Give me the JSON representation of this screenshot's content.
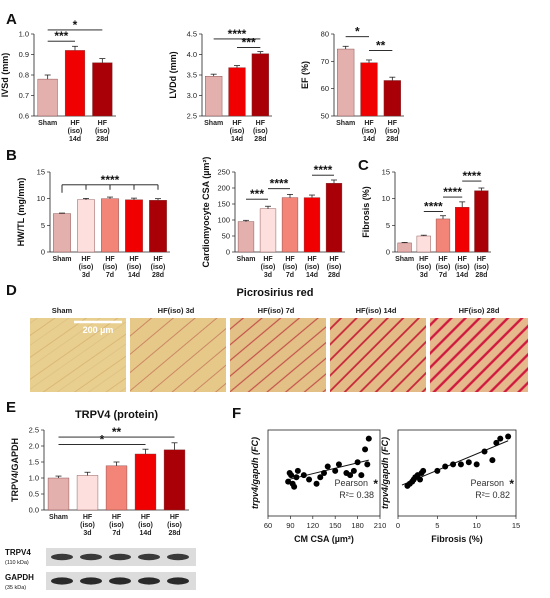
{
  "panel_letters": [
    "A",
    "B",
    "C",
    "D",
    "E",
    "F"
  ],
  "histology": {
    "title": "Picrosirius red",
    "scale_bar_label": "200 µm",
    "labels": [
      "Sham",
      "HF(iso) 3d",
      "HF(iso) 7d",
      "HF(iso) 14d",
      "HF(iso) 28d"
    ]
  },
  "western": {
    "bands": [
      {
        "name": "TRPV4",
        "size": "(110 kDa)"
      },
      {
        "name": "GAPDH",
        "size": "(35 kDa)"
      }
    ]
  },
  "colors": {
    "sham": "#e3b0ad",
    "d3": "#fde0de",
    "d7": "#f28478",
    "d14": "#f00000",
    "d28": "#a80006",
    "dot": "#000000"
  },
  "chart_data": [
    {
      "id": "A1",
      "type": "bar",
      "ylabel": "IVSd (mm)",
      "categories": [
        "Sham",
        "HF (iso) 14d",
        "HF (iso) 28d"
      ],
      "colors": [
        "sham",
        "d14",
        "d28"
      ],
      "values": [
        0.78,
        0.92,
        0.86
      ],
      "errors": [
        0.02,
        0.02,
        0.02
      ],
      "ylim": [
        0.6,
        1.0
      ],
      "yticks": [
        "0.6",
        "0.7",
        "0.8",
        "0.9",
        "1.0"
      ],
      "sig": [
        {
          "from": 0,
          "to": 1,
          "label": "***",
          "y": 0.965
        },
        {
          "from": 0,
          "to": 2,
          "label": "*",
          "y": 1.02
        }
      ]
    },
    {
      "id": "A2",
      "type": "bar",
      "ylabel": "LVDd (mm)",
      "categories": [
        "Sham",
        "HF (iso) 14d",
        "HF (iso) 28d"
      ],
      "colors": [
        "sham",
        "d14",
        "d28"
      ],
      "values": [
        3.47,
        3.68,
        4.02
      ],
      "errors": [
        0.05,
        0.05,
        0.05
      ],
      "ylim": [
        2.5,
        4.5
      ],
      "yticks": [
        "2.5",
        "3.0",
        "3.5",
        "4.0",
        "4.5"
      ],
      "sig": [
        {
          "from": 1,
          "to": 2,
          "label": "***",
          "y": 4.17
        },
        {
          "from": 0,
          "to": 2,
          "label": "****",
          "y": 4.38
        }
      ]
    },
    {
      "id": "A3",
      "type": "bar",
      "ylabel": "EF (%)",
      "categories": [
        "Sham",
        "HF (iso) 14d",
        "HF (iso) 28d"
      ],
      "colors": [
        "sham",
        "d14",
        "d28"
      ],
      "values": [
        74.5,
        69.5,
        63
      ],
      "errors": [
        1,
        1,
        1.2
      ],
      "ylim": [
        50,
        80
      ],
      "yticks": [
        "50",
        "60",
        "70",
        "80"
      ],
      "sig": [
        {
          "from": 1,
          "to": 2,
          "label": "**",
          "y": 74
        },
        {
          "from": 0,
          "to": 1,
          "label": "*",
          "y": 79
        }
      ]
    },
    {
      "id": "B1",
      "type": "bar",
      "ylabel": "HW/TL (mg/mm)",
      "categories": [
        "Sham",
        "HF (iso) 3d",
        "HF (iso) 7d",
        "HF (iso) 14d",
        "HF (iso) 28d"
      ],
      "colors": [
        "sham",
        "d3",
        "d7",
        "d14",
        "d28"
      ],
      "values": [
        7.2,
        9.8,
        10.0,
        9.8,
        9.7
      ],
      "errors": [
        0.1,
        0.25,
        0.3,
        0.3,
        0.3
      ],
      "ylim": [
        0,
        15
      ],
      "yticks": [
        "0",
        "5",
        "10",
        "15"
      ],
      "sig": [
        {
          "from": 0,
          "to": 4,
          "label": "****",
          "y": 12.6,
          "bracket": true
        }
      ]
    },
    {
      "id": "B2",
      "type": "bar",
      "ylabel": "Cardiomyocyte CSA (µm²)",
      "categories": [
        "Sham",
        "HF (iso) 3d",
        "HF (iso) 7d",
        "HF (iso) 14d",
        "HF (iso) 28d"
      ],
      "colors": [
        "sham",
        "d3",
        "d7",
        "d14",
        "d28"
      ],
      "values": [
        95,
        135,
        170,
        170,
        215
      ],
      "errors": [
        4,
        8,
        10,
        8,
        10
      ],
      "ylim": [
        0,
        250
      ],
      "yticks": [
        "0",
        "50",
        "100",
        "150",
        "200",
        "250"
      ],
      "sig": [
        {
          "from": 0,
          "to": 1,
          "label": "***",
          "y": 165
        },
        {
          "from": 1,
          "to": 2,
          "label": "****",
          "y": 198
        },
        {
          "from": 3,
          "to": 4,
          "label": "****",
          "y": 240
        }
      ]
    },
    {
      "id": "C",
      "type": "bar",
      "ylabel": "Fibrosis (%)",
      "categories": [
        "Sham",
        "HF (iso) 3d",
        "HF (iso) 7d",
        "HF (iso) 14d",
        "HF (iso) 28d"
      ],
      "colors": [
        "sham",
        "d3",
        "d7",
        "d14",
        "d28"
      ],
      "values": [
        1.7,
        3.0,
        6.2,
        8.4,
        11.5
      ],
      "errors": [
        0.1,
        0.15,
        0.6,
        1.0,
        0.5
      ],
      "ylim": [
        0,
        15
      ],
      "yticks": [
        "0",
        "5",
        "10",
        "15"
      ],
      "sig": [
        {
          "from": 1,
          "to": 2,
          "label": "****",
          "y": 7.6
        },
        {
          "from": 2,
          "to": 3,
          "label": "****",
          "y": 10.3
        },
        {
          "from": 3,
          "to": 4,
          "label": "****",
          "y": 13.3
        }
      ]
    },
    {
      "id": "E",
      "type": "bar",
      "title": "TRPV4 (protein)",
      "ylabel": "TRPV4/GAPDH",
      "categories": [
        "Sham",
        "HF (iso) 3d",
        "HF (iso) 7d",
        "HF (iso) 14d",
        "HF (iso) 28d"
      ],
      "colors": [
        "sham",
        "d3",
        "d7",
        "d14",
        "d28"
      ],
      "values": [
        1.0,
        1.08,
        1.38,
        1.75,
        1.88
      ],
      "errors": [
        0.06,
        0.1,
        0.12,
        0.15,
        0.22
      ],
      "ylim": [
        0,
        2.5
      ],
      "yticks": [
        "0.0",
        "0.5",
        "1.0",
        "1.5",
        "2.0",
        "2.5"
      ],
      "sig": [
        {
          "from": 0,
          "to": 3,
          "label": "*",
          "y": 2.05
        },
        {
          "from": 0,
          "to": 4,
          "label": "**",
          "y": 2.28
        }
      ]
    },
    {
      "id": "F1",
      "type": "scatter",
      "xlabel": "CM CSA (µm²)",
      "ylabel": "trpv4/gapdh (FC)",
      "xlim": [
        60,
        210
      ],
      "ylim": [
        0,
        2
      ],
      "xticks": [
        "60",
        "90",
        "120",
        "150",
        "180",
        "210"
      ],
      "stat_label": "Pearson",
      "stat_sig": "*",
      "r2": "R²= 0.38",
      "line": [
        [
          88,
          0.85
        ],
        [
          195,
          1.3
        ]
      ],
      "points": [
        [
          87,
          0.8
        ],
        [
          89,
          1.0
        ],
        [
          91,
          0.95
        ],
        [
          93,
          0.75
        ],
        [
          95,
          0.68
        ],
        [
          98,
          0.9
        ],
        [
          100,
          1.05
        ],
        [
          108,
          0.95
        ],
        [
          115,
          0.85
        ],
        [
          125,
          0.75
        ],
        [
          130,
          0.9
        ],
        [
          135,
          1.0
        ],
        [
          140,
          1.15
        ],
        [
          150,
          1.05
        ],
        [
          155,
          1.2
        ],
        [
          165,
          1.0
        ],
        [
          170,
          0.95
        ],
        [
          175,
          1.05
        ],
        [
          180,
          1.25
        ],
        [
          185,
          0.95
        ],
        [
          190,
          1.55
        ],
        [
          193,
          1.2
        ],
        [
          195,
          1.8
        ]
      ]
    },
    {
      "id": "F2",
      "type": "scatter",
      "xlabel": "Fibrosis (%)",
      "ylabel": "trpv4/gapdh (FC)",
      "xlim": [
        0,
        15
      ],
      "ylim": [
        0,
        2
      ],
      "xticks": [
        "0",
        "5",
        "10",
        "15"
      ],
      "stat_label": "Pearson",
      "stat_sig": "*",
      "r2": "R²= 0.82",
      "line": [
        [
          0.5,
          0.72
        ],
        [
          14,
          1.75
        ]
      ],
      "points": [
        [
          1.2,
          0.7
        ],
        [
          1.5,
          0.75
        ],
        [
          1.8,
          0.8
        ],
        [
          2.0,
          0.85
        ],
        [
          2.2,
          0.9
        ],
        [
          2.5,
          0.95
        ],
        [
          2.8,
          0.85
        ],
        [
          3.0,
          1.0
        ],
        [
          3.2,
          1.05
        ],
        [
          5,
          1.05
        ],
        [
          6,
          1.15
        ],
        [
          7,
          1.2
        ],
        [
          8,
          1.2
        ],
        [
          9,
          1.25
        ],
        [
          10,
          1.2
        ],
        [
          11,
          1.5
        ],
        [
          12,
          1.3
        ],
        [
          12.5,
          1.7
        ],
        [
          13,
          1.8
        ],
        [
          14,
          1.85
        ]
      ]
    }
  ]
}
